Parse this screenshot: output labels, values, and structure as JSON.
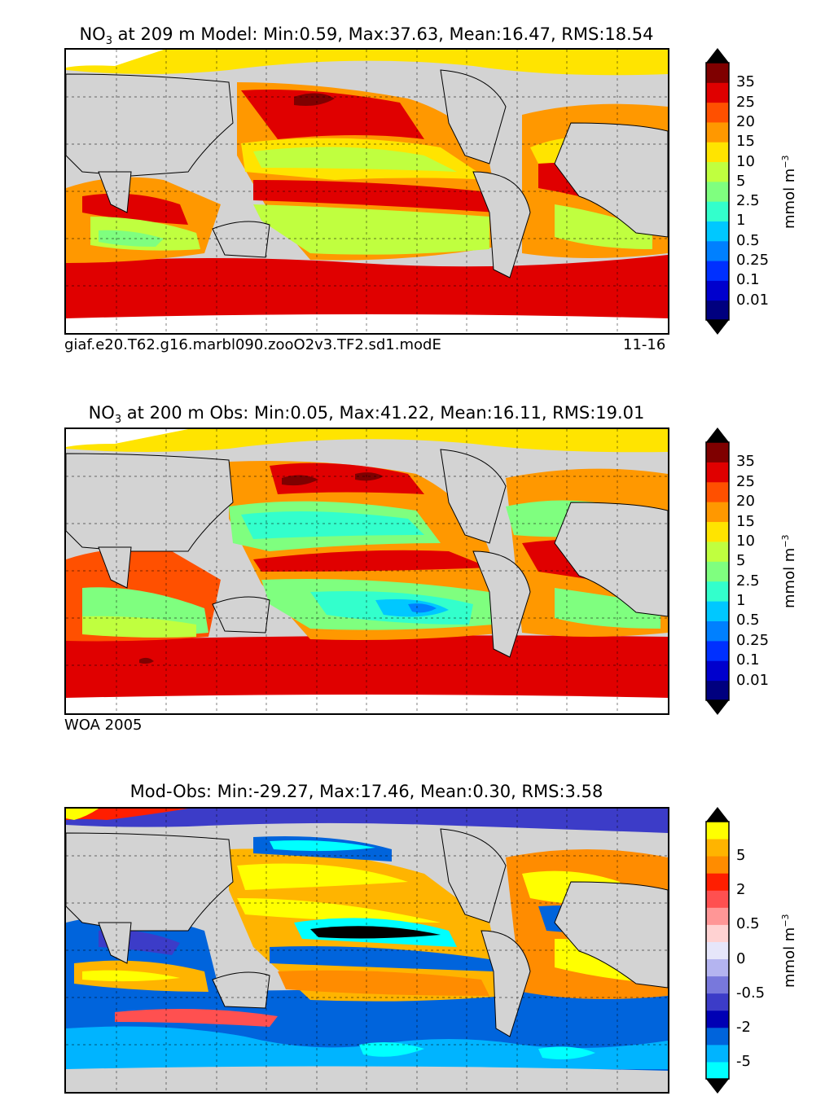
{
  "panels": [
    {
      "id": "model",
      "title_species": "NO",
      "title_sub": "3",
      "title_rest": " at 209 m Model: Min:0.59, Max:37.63, Mean:16.47, RMS:18.54",
      "footer_left": "giaf.e20.T62.g16.marbl090.zooO2v3.TF2.sd1.modE",
      "footer_right": "11-16",
      "colorbar": {
        "unit_text": "mmol m",
        "unit_exp": "−3",
        "ticks": [
          "35",
          "25",
          "20",
          "15",
          "10",
          "5",
          "2.5",
          "1",
          "0.5",
          "0.25",
          "0.1",
          "0.01"
        ],
        "colors": [
          "#00007f",
          "#0000cd",
          "#0030ff",
          "#0080ff",
          "#00c8ff",
          "#33ffcc",
          "#7fff7f",
          "#c0ff3f",
          "#ffe400",
          "#ff9800",
          "#ff5000",
          "#e00000",
          "#7f0000"
        ]
      }
    },
    {
      "id": "obs",
      "title_species": "NO",
      "title_sub": "3",
      "title_rest": " at 200 m Obs: Min:0.05, Max:41.22, Mean:16.11, RMS:19.01",
      "footer_left": "WOA 2005",
      "footer_right": "",
      "colorbar": {
        "unit_text": "mmol m",
        "unit_exp": "−3",
        "ticks": [
          "35",
          "25",
          "20",
          "15",
          "10",
          "5",
          "2.5",
          "1",
          "0.5",
          "0.25",
          "0.1",
          "0.01"
        ],
        "colors": [
          "#00007f",
          "#0000cd",
          "#0030ff",
          "#0080ff",
          "#00c8ff",
          "#33ffcc",
          "#7fff7f",
          "#c0ff3f",
          "#ffe400",
          "#ff9800",
          "#ff5000",
          "#e00000",
          "#7f0000"
        ]
      }
    },
    {
      "id": "diff",
      "title_species": "",
      "title_sub": "",
      "title_rest": "Mod-Obs: Min:-29.27, Max:17.46, Mean:0.30, RMS:3.58",
      "footer_left": "",
      "footer_right": "",
      "colorbar": {
        "unit_text": "mmol m",
        "unit_exp": "−3",
        "ticks": [
          "5",
          "2",
          "0.5",
          "0",
          "-0.5",
          "-2",
          "-5"
        ],
        "colors": [
          "#00ffff",
          "#00b4ff",
          "#0064dc",
          "#0000b4",
          "#3c3cc8",
          "#7878dc",
          "#b4b4f0",
          "#e6e6fa",
          "#ffd2d2",
          "#ff9696",
          "#ff5050",
          "#ff1e00",
          "#ff8c00",
          "#ffb400",
          "#ffff00"
        ]
      }
    }
  ]
}
